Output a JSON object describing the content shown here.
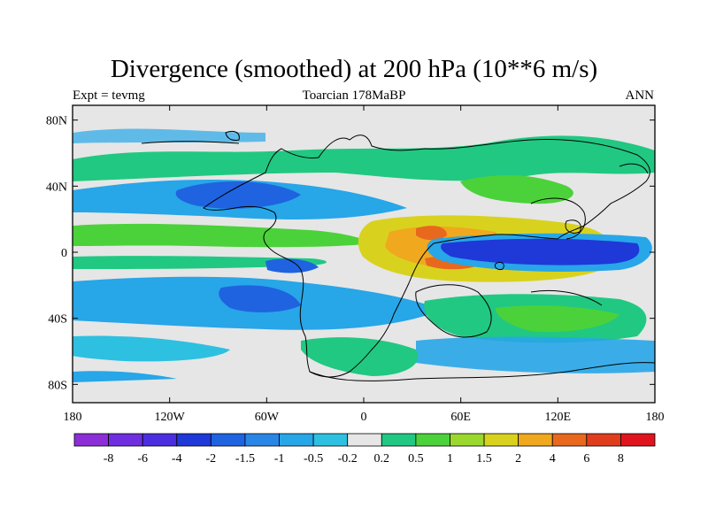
{
  "title": "Divergence (smoothed) at 200 hPa (10**6 m/s)",
  "subtitle_left": "Expt = tevmg",
  "subtitle_center": "Toarcian 178MaBP",
  "subtitle_right": "ANN",
  "map": {
    "projection": "cylindrical equidistant",
    "lat_ticks": [
      {
        "value": 80,
        "label": "80N"
      },
      {
        "value": 40,
        "label": "40N"
      },
      {
        "value": 0,
        "label": "0"
      },
      {
        "value": -40,
        "label": "40S"
      },
      {
        "value": -80,
        "label": "80S"
      }
    ],
    "lon_ticks": [
      {
        "value": -180,
        "label": "180"
      },
      {
        "value": -120,
        "label": "120W"
      },
      {
        "value": -60,
        "label": "60W"
      },
      {
        "value": 0,
        "label": "0"
      },
      {
        "value": 60,
        "label": "60E"
      },
      {
        "value": 120,
        "label": "120E"
      },
      {
        "value": 180,
        "label": "180"
      }
    ]
  },
  "colorbar": {
    "labels": [
      "-8",
      "-6",
      "-4",
      "-2",
      "-1.5",
      "-1",
      "-0.5",
      "-0.2",
      "0.2",
      "0.5",
      "1",
      "1.5",
      "2",
      "4",
      "6",
      "8"
    ],
    "colors": [
      "#8c2ed8",
      "#6f2ee0",
      "#4a2ee0",
      "#1f38d8",
      "#1f63e0",
      "#2a86e6",
      "#27a6e8",
      "#2ec0e0",
      "#e6e6e6",
      "#21c882",
      "#4bd23a",
      "#9ad82e",
      "#d8d21e",
      "#f0a81e",
      "#e8681e",
      "#e03c1e",
      "#e0141e"
    ]
  },
  "field_features": [
    {
      "name": "east-pacific-convergence",
      "lon": 62,
      "lat": 0,
      "value": -5
    },
    {
      "name": "central-equatorial-divergence",
      "lon": 30,
      "lat": 4,
      "value": 3
    }
  ]
}
